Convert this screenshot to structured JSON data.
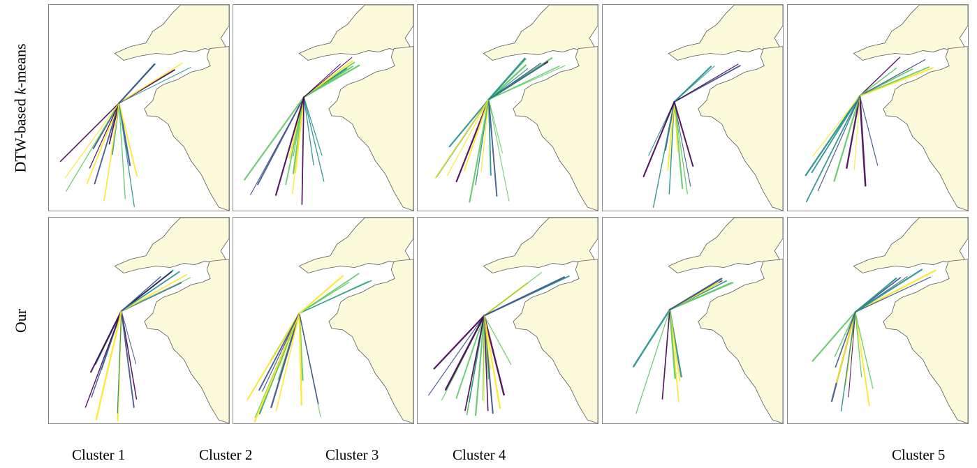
{
  "row_labels": {
    "row1_prefix": "DTW-based ",
    "row1_italic": "k",
    "row1_suffix": "-means",
    "row2": "Our"
  },
  "column_labels": [
    "Cluster 1",
    "Cluster 2",
    "Cluster 3",
    "Cluster 4",
    "Cluster 5"
  ],
  "colors": {
    "land": "#fbfbdc",
    "coast": "#555555",
    "frame": "#888888",
    "trajectory_palette": [
      "#440154",
      "#3b528b",
      "#21918c",
      "#5ec962",
      "#fde725"
    ]
  },
  "panels": [
    {
      "row": 1,
      "cluster": 1
    },
    {
      "row": 1,
      "cluster": 2
    },
    {
      "row": 1,
      "cluster": 3
    },
    {
      "row": 1,
      "cluster": 4
    },
    {
      "row": 1,
      "cluster": 5
    },
    {
      "row": 2,
      "cluster": 1
    },
    {
      "row": 2,
      "cluster": 2
    },
    {
      "row": 2,
      "cluster": 3
    },
    {
      "row": 2,
      "cluster": 4
    },
    {
      "row": 2,
      "cluster": 5
    }
  ]
}
